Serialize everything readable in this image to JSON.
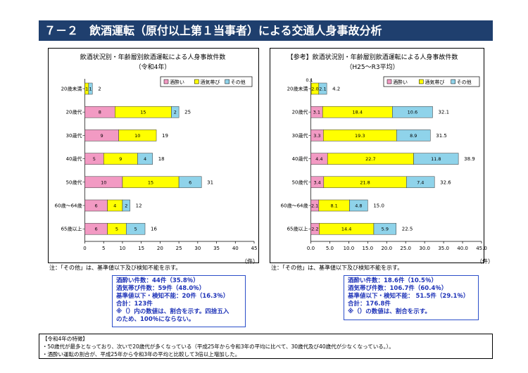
{
  "header": {
    "title": "７－２　飲酒運転（原付以上第１当事者）による交通人身事故分析"
  },
  "legend": [
    {
      "name": "酒酔い",
      "color": "#f29ac3"
    },
    {
      "name": "酒気帯び",
      "color": "#ffff00"
    },
    {
      "name": "その他",
      "color": "#8fd3ea"
    }
  ],
  "chart_data": [
    {
      "type": "bar",
      "orientation": "horizontal",
      "stacked": true,
      "title": "飲酒状況別・年齢層別飲酒運転による人身事故件数",
      "subtitle": "（令和4年）",
      "categories": [
        "20歳未満",
        "20歳代",
        "30歳代",
        "40歳代",
        "50歳代",
        "60歳～64歳",
        "65歳以上"
      ],
      "series": [
        {
          "name": "酒酔い",
          "values": [
            0,
            8,
            9,
            5,
            10,
            6,
            6
          ]
        },
        {
          "name": "酒気帯び",
          "values": [
            1,
            15,
            10,
            9,
            15,
            4,
            5
          ]
        },
        {
          "name": "その他",
          "values": [
            1,
            2,
            0,
            4,
            6,
            2,
            5
          ]
        }
      ],
      "totals": [
        2,
        25,
        19,
        18,
        31,
        12,
        16
      ],
      "segment_labels": [
        [
          "",
          "1",
          "1"
        ],
        [
          "8",
          "15",
          "2"
        ],
        [
          "9",
          "10",
          ""
        ],
        [
          "5",
          "9",
          "4"
        ],
        [
          "10",
          "15",
          "6"
        ],
        [
          "6",
          "4",
          "2"
        ],
        [
          "6",
          "5",
          "5"
        ]
      ],
      "xlim": [
        0,
        45
      ],
      "xticks": [
        0,
        5,
        10,
        15,
        20,
        25,
        30,
        35,
        40,
        45
      ],
      "xtick_labels": [
        "0",
        "5",
        "10",
        "15",
        "20",
        "25",
        "30",
        "35",
        "40",
        "45"
      ],
      "unit": "（件）",
      "note": "注：「その他」は、基準値以下及び検知不能を示す。",
      "legend_position": "top-right"
    },
    {
      "type": "bar",
      "orientation": "horizontal",
      "stacked": true,
      "title": "【参考】飲酒状況別・年齢層別飲酒運転による人身事故件数",
      "subtitle": "（H25～R3平均）",
      "categories": [
        "20歳未満",
        "20歳代",
        "30歳代",
        "40歳代",
        "50歳代",
        "60歳～64歳",
        "65歳以上"
      ],
      "series": [
        {
          "name": "酒酔い",
          "values": [
            0.1,
            3.1,
            3.3,
            4.4,
            3.4,
            2.1,
            2.2
          ]
        },
        {
          "name": "酒気帯び",
          "values": [
            2.0,
            18.4,
            19.3,
            22.7,
            21.8,
            8.1,
            14.4
          ]
        },
        {
          "name": "その他",
          "values": [
            2.1,
            10.6,
            8.9,
            11.8,
            7.4,
            4.8,
            5.9
          ]
        }
      ],
      "totals": [
        4.2,
        32.1,
        31.5,
        38.9,
        32.6,
        15.0,
        22.5
      ],
      "total_labels": [
        "4.2",
        "32.1",
        "31.5",
        "38.9",
        "32.6",
        "15.0",
        "22.5"
      ],
      "segment_labels": [
        [
          "0.1",
          "2.0",
          "2.1"
        ],
        [
          "3.1",
          "18.4",
          "10.6"
        ],
        [
          "3.3",
          "19.3",
          "8.9"
        ],
        [
          "4.4",
          "22.7",
          "11.8"
        ],
        [
          "3.4",
          "21.8",
          "7.4"
        ],
        [
          "2.1",
          "8.1",
          "4.8"
        ],
        [
          "2.2",
          "14.4",
          "5.9"
        ]
      ],
      "xlim": [
        0,
        45
      ],
      "xticks": [
        0,
        5,
        10,
        15,
        20,
        25,
        30,
        35,
        40,
        45
      ],
      "xtick_labels": [
        "0.0",
        "5.0",
        "10.0",
        "15.0",
        "20.0",
        "25.0",
        "30.0",
        "35.0",
        "40.0",
        "45.0"
      ],
      "unit": "（件）",
      "note": "注：「その他」は、基準値以下及び検知不能を示す。",
      "legend_position": "top-right"
    }
  ],
  "summary_left": [
    "酒酔い件数：44件（35.8％）",
    "酒気帯び件数：59件（48.0％）",
    "基準値以下・検知不能：20件（16.3％）",
    "合計：123件",
    "※（）内の数値は、割合を示す。四捨五入",
    "のため、100％にならない。"
  ],
  "summary_right": [
    "酒酔い件数：18.6件（10.5％）",
    "酒気帯び件数：106.7件（60.4％）",
    "基準値以下・検知不能： 51.5件（29.1％）",
    "合計：176.8件",
    "※（）の数値は、割合を示す。"
  ],
  "features": {
    "heading": "【令和4年の特徴】",
    "items": [
      "・50歳代が最多となっており、次いで20歳代が多くなっている（平成25年から令和3年の平均に比べて、30歳代及び40歳代が少なくなっている。）。",
      "・酒酔い運転の割合が、平成25年から令和3年の平均と比較して3倍以上増加した。"
    ]
  }
}
